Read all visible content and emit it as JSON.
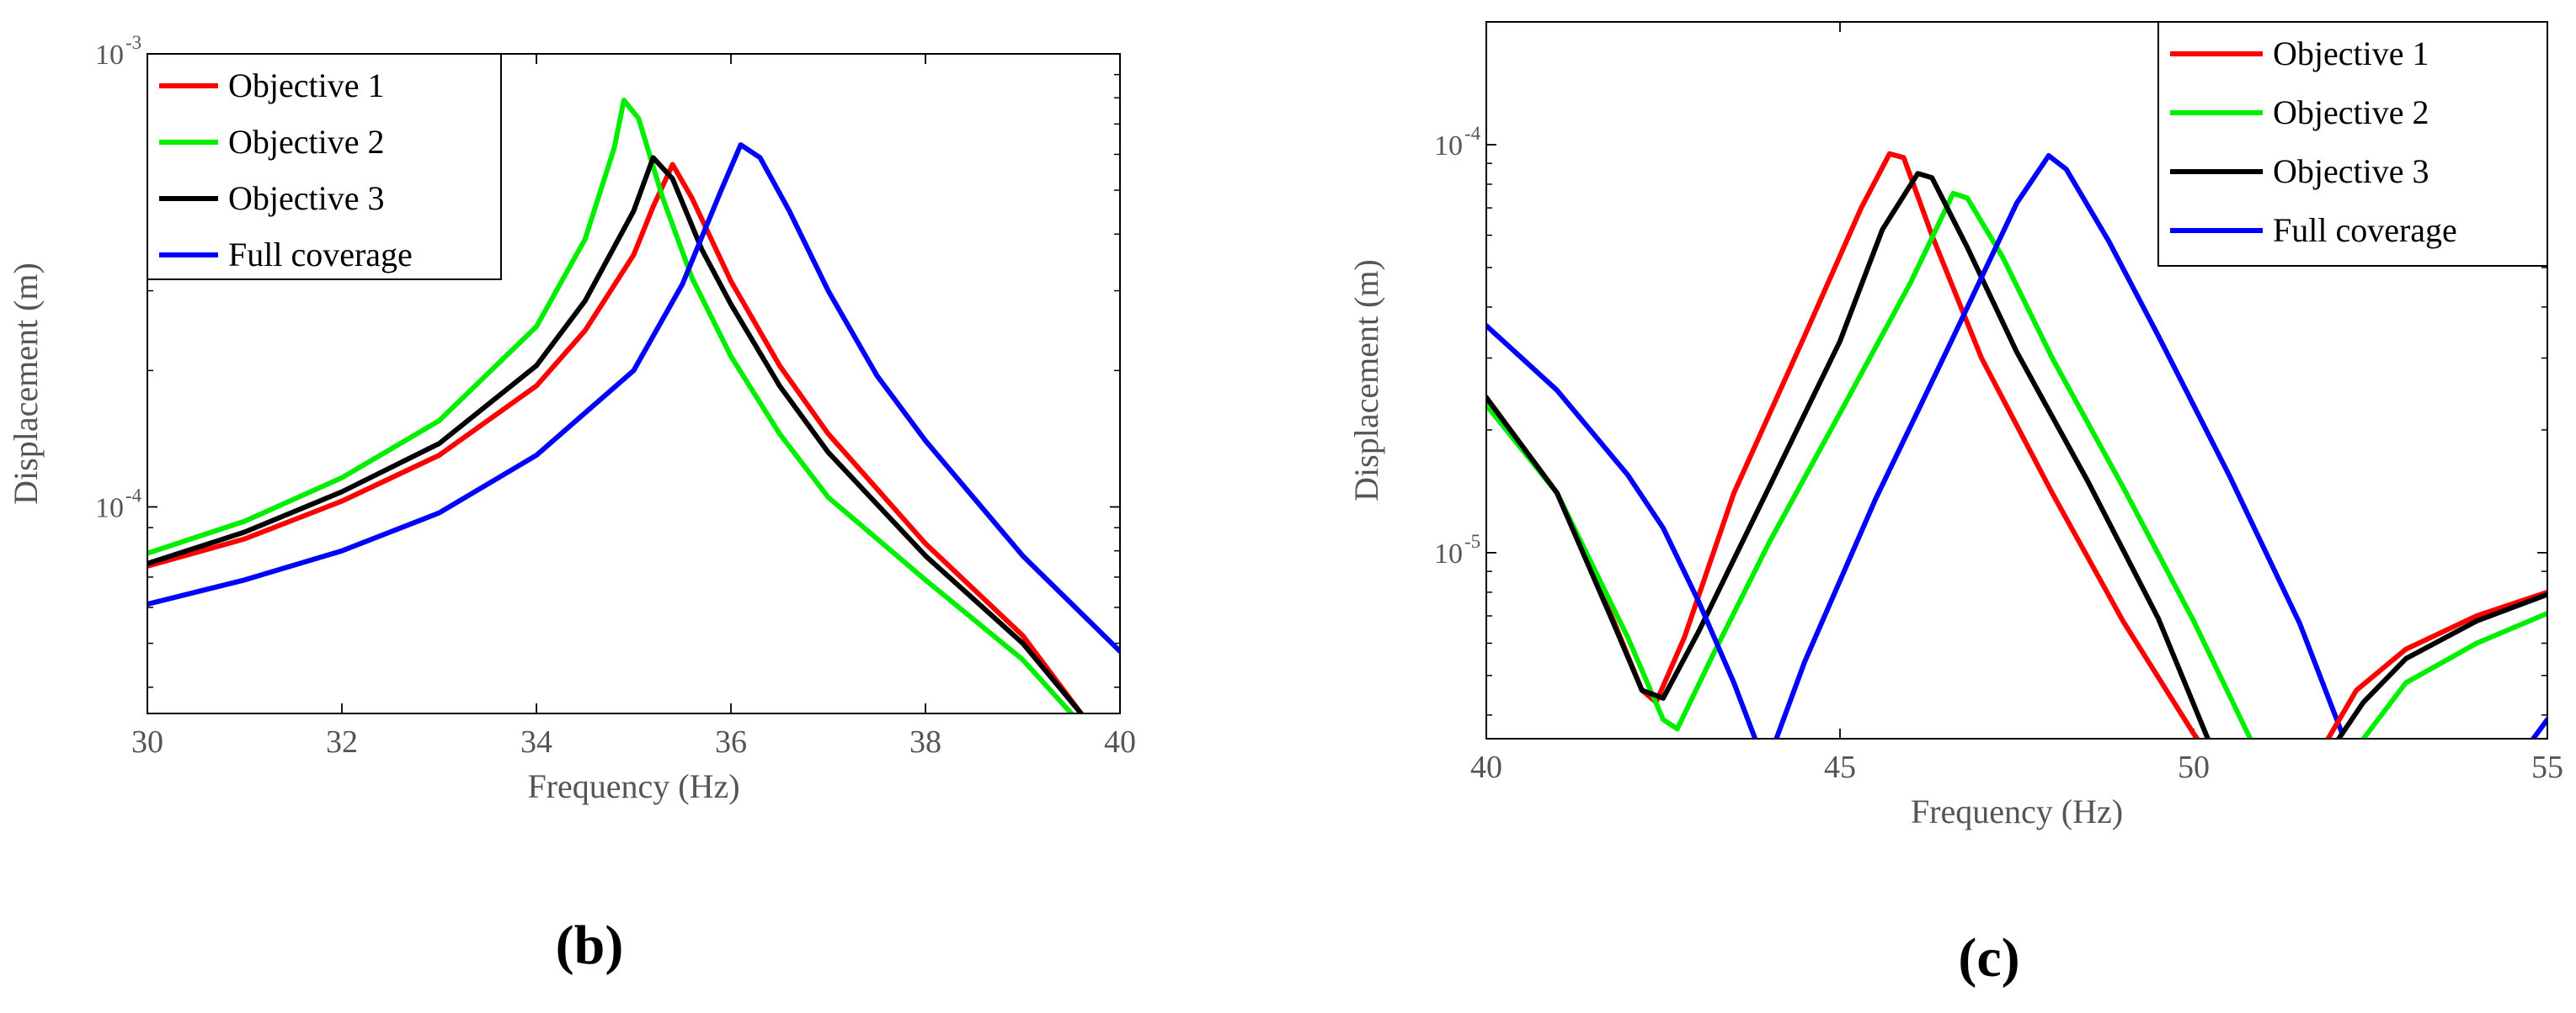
{
  "chart_data": [
    {
      "type": "line",
      "panel_label": "(b)",
      "xlabel": "Frequency (Hz)",
      "ylabel": "Displacement (m)",
      "yscale": "log",
      "xlim": [
        30,
        40
      ],
      "ylim": [
        3.5e-05,
        0.001
      ],
      "xticks": [
        30,
        32,
        34,
        36,
        38,
        40
      ],
      "xtick_labels": [
        "30",
        "32",
        "34",
        "36",
        "38",
        "40"
      ],
      "yticks": [
        {
          "value": 0.0001,
          "base": "10",
          "exp": "-4"
        },
        {
          "value": 0.001,
          "base": "10",
          "exp": "-3"
        }
      ],
      "legend_position": "top-left",
      "series": [
        {
          "name": "Objective 1",
          "color": "#ff0000",
          "points": [
            [
              30,
              7.4e-05
            ],
            [
              31,
              8.5e-05
            ],
            [
              32,
              0.000103
            ],
            [
              33,
              0.00013
            ],
            [
              34,
              0.000185
            ],
            [
              34.5,
              0.000245
            ],
            [
              35,
              0.00036
            ],
            [
              35.2,
              0.00046
            ],
            [
              35.4,
              0.00057
            ],
            [
              35.6,
              0.00048
            ],
            [
              36,
              0.000315
            ],
            [
              36.5,
              0.000205
            ],
            [
              37,
              0.000145
            ],
            [
              38,
              8.3e-05
            ],
            [
              39,
              5.2e-05
            ],
            [
              39.6,
              3.5e-05
            ]
          ]
        },
        {
          "name": "Objective 2",
          "color": "#00ee00",
          "points": [
            [
              30,
              7.9e-05
            ],
            [
              31,
              9.3e-05
            ],
            [
              32,
              0.000116
            ],
            [
              33,
              0.000155
            ],
            [
              34,
              0.00025
            ],
            [
              34.5,
              0.00039
            ],
            [
              34.8,
              0.00062
            ],
            [
              34.9,
              0.00079
            ],
            [
              35.05,
              0.00072
            ],
            [
              35.3,
              0.00048
            ],
            [
              35.6,
              0.00032
            ],
            [
              36,
              0.000215
            ],
            [
              36.5,
              0.000145
            ],
            [
              37,
              0.000105
            ],
            [
              38,
              6.9e-05
            ],
            [
              39,
              4.6e-05
            ],
            [
              39.5,
              3.5e-05
            ]
          ]
        },
        {
          "name": "Objective 3",
          "color": "#000000",
          "points": [
            [
              30,
              7.5e-05
            ],
            [
              31,
              8.8e-05
            ],
            [
              32,
              0.000108
            ],
            [
              33,
              0.000138
            ],
            [
              34,
              0.000205
            ],
            [
              34.5,
              0.000285
            ],
            [
              35,
              0.00045
            ],
            [
              35.2,
              0.00059
            ],
            [
              35.4,
              0.00053
            ],
            [
              35.7,
              0.00037
            ],
            [
              36,
              0.00028
            ],
            [
              36.5,
              0.000185
            ],
            [
              37,
              0.000132
            ],
            [
              38,
              7.8e-05
            ],
            [
              39,
              5e-05
            ],
            [
              39.6,
              3.5e-05
            ]
          ]
        },
        {
          "name": "Full coverage",
          "color": "#0000ff",
          "points": [
            [
              30,
              6.1e-05
            ],
            [
              31,
              6.9e-05
            ],
            [
              32,
              8e-05
            ],
            [
              33,
              9.7e-05
            ],
            [
              34,
              0.00013
            ],
            [
              35,
              0.0002
            ],
            [
              35.5,
              0.00031
            ],
            [
              35.9,
              0.0005
            ],
            [
              36.1,
              0.00063
            ],
            [
              36.3,
              0.00059
            ],
            [
              36.6,
              0.00045
            ],
            [
              37,
              0.0003
            ],
            [
              37.5,
              0.000195
            ],
            [
              38,
              0.00014
            ],
            [
              39,
              7.8e-05
            ],
            [
              40,
              4.8e-05
            ]
          ]
        }
      ]
    },
    {
      "type": "line",
      "panel_label": "(c)",
      "xlabel": "Frequency (Hz)",
      "ylabel": "Displacement (m)",
      "yscale": "log",
      "xlim": [
        40,
        55
      ],
      "ylim": [
        3.5e-06,
        0.0002
      ],
      "xticks": [
        40,
        45,
        50,
        55
      ],
      "xtick_labels": [
        "40",
        "45",
        "50",
        "55"
      ],
      "yticks": [
        {
          "value": 1e-05,
          "base": "10",
          "exp": "-5"
        },
        {
          "value": 0.0001,
          "base": "10",
          "exp": "-4"
        }
      ],
      "legend_position": "top-right",
      "series": [
        {
          "name": "Objective 1",
          "color": "#ff0000",
          "points": [
            [
              40,
              2.4e-05
            ],
            [
              41,
              1.4e-05
            ],
            [
              41.8,
              6.8e-06
            ],
            [
              42.2,
              4.6e-06
            ],
            [
              42.4,
              4.3e-06
            ],
            [
              42.8,
              6.2e-06
            ],
            [
              43.5,
              1.4e-05
            ],
            [
              44.5,
              3.4e-05
            ],
            [
              45.3,
              7e-05
            ],
            [
              45.7,
              9.5e-05
            ],
            [
              45.9,
              9.3e-05
            ],
            [
              46.3,
              6e-05
            ],
            [
              47,
              3e-05
            ],
            [
              48,
              1.4e-05
            ],
            [
              49,
              6.8e-06
            ],
            [
              50,
              3.6e-06
            ],
            [
              50.05,
              3.5e-06
            ]
          ]
        },
        {
          "name": "Objective 2",
          "color": "#00ee00",
          "points": [
            [
              40,
              2.3e-05
            ],
            [
              41,
              1.4e-05
            ],
            [
              42,
              6.2e-06
            ],
            [
              42.5,
              3.9e-06
            ],
            [
              42.7,
              3.7e-06
            ],
            [
              43.2,
              5.6e-06
            ],
            [
              44,
              1.06e-05
            ],
            [
              45,
              2.2e-05
            ],
            [
              46,
              4.6e-05
            ],
            [
              46.6,
              7.6e-05
            ],
            [
              46.8,
              7.4e-05
            ],
            [
              47.3,
              5.3e-05
            ],
            [
              48,
              3e-05
            ],
            [
              49,
              1.45e-05
            ],
            [
              50,
              6.8e-06
            ],
            [
              50.8,
              3.5e-06
            ]
          ]
        },
        {
          "name": "Objective 3",
          "color": "#000000",
          "points": [
            [
              40,
              2.4e-05
            ],
            [
              41,
              1.4e-05
            ],
            [
              41.8,
              6.7e-06
            ],
            [
              42.2,
              4.6e-06
            ],
            [
              42.5,
              4.4e-06
            ],
            [
              43,
              6.4e-06
            ],
            [
              44,
              1.45e-05
            ],
            [
              45,
              3.3e-05
            ],
            [
              45.6,
              6.2e-05
            ],
            [
              46.1,
              8.5e-05
            ],
            [
              46.3,
              8.3e-05
            ],
            [
              46.8,
              5.6e-05
            ],
            [
              47.5,
              3.1e-05
            ],
            [
              48.5,
              1.5e-05
            ],
            [
              49.5,
              6.9e-06
            ],
            [
              50.2,
              3.5e-06
            ]
          ]
        },
        {
          "name": "Full coverage",
          "color": "#0000ff",
          "points": [
            [
              40,
              3.6e-05
            ],
            [
              41,
              2.5e-05
            ],
            [
              42,
              1.55e-05
            ],
            [
              42.5,
              1.15e-05
            ],
            [
              43,
              7.6e-06
            ],
            [
              43.5,
              4.8e-06
            ],
            [
              43.8,
              3.5e-06
            ]
          ]
        },
        {
          "name": "Full coverage",
          "color": "#0000ff",
          "points": [
            [
              44.1,
              3.5e-06
            ],
            [
              44.5,
              5.4e-06
            ],
            [
              45.5,
              1.35e-05
            ],
            [
              46.5,
              3.1e-05
            ],
            [
              47.5,
              7.2e-05
            ],
            [
              47.95,
              9.4e-05
            ],
            [
              48.2,
              8.7e-05
            ],
            [
              48.8,
              5.8e-05
            ],
            [
              49.5,
              3.4e-05
            ],
            [
              50.5,
              1.55e-05
            ],
            [
              51.5,
              6.7e-06
            ],
            [
              52.1,
              3.6e-06
            ]
          ]
        },
        {
          "name": "Objective 1",
          "color": "#ff0000",
          "points": [
            [
              51.9,
              3.5e-06
            ],
            [
              52.3,
              4.6e-06
            ],
            [
              53,
              5.8e-06
            ],
            [
              54,
              7e-06
            ],
            [
              55,
              8e-06
            ]
          ]
        },
        {
          "name": "Objective 3",
          "color": "#000000",
          "points": [
            [
              52.05,
              3.5e-06
            ],
            [
              52.4,
              4.3e-06
            ],
            [
              53,
              5.5e-06
            ],
            [
              54,
              6.8e-06
            ],
            [
              55,
              7.9e-06
            ]
          ]
        },
        {
          "name": "Objective 2",
          "color": "#00ee00",
          "points": [
            [
              52.4,
              3.5e-06
            ],
            [
              53,
              4.8e-06
            ],
            [
              54,
              6e-06
            ],
            [
              55,
              7.1e-06
            ]
          ]
        },
        {
          "name": "Full coverage",
          "color": "#0000ff",
          "points": [
            [
              54.8,
              3.5e-06
            ],
            [
              55,
              3.9e-06
            ]
          ]
        }
      ]
    }
  ]
}
